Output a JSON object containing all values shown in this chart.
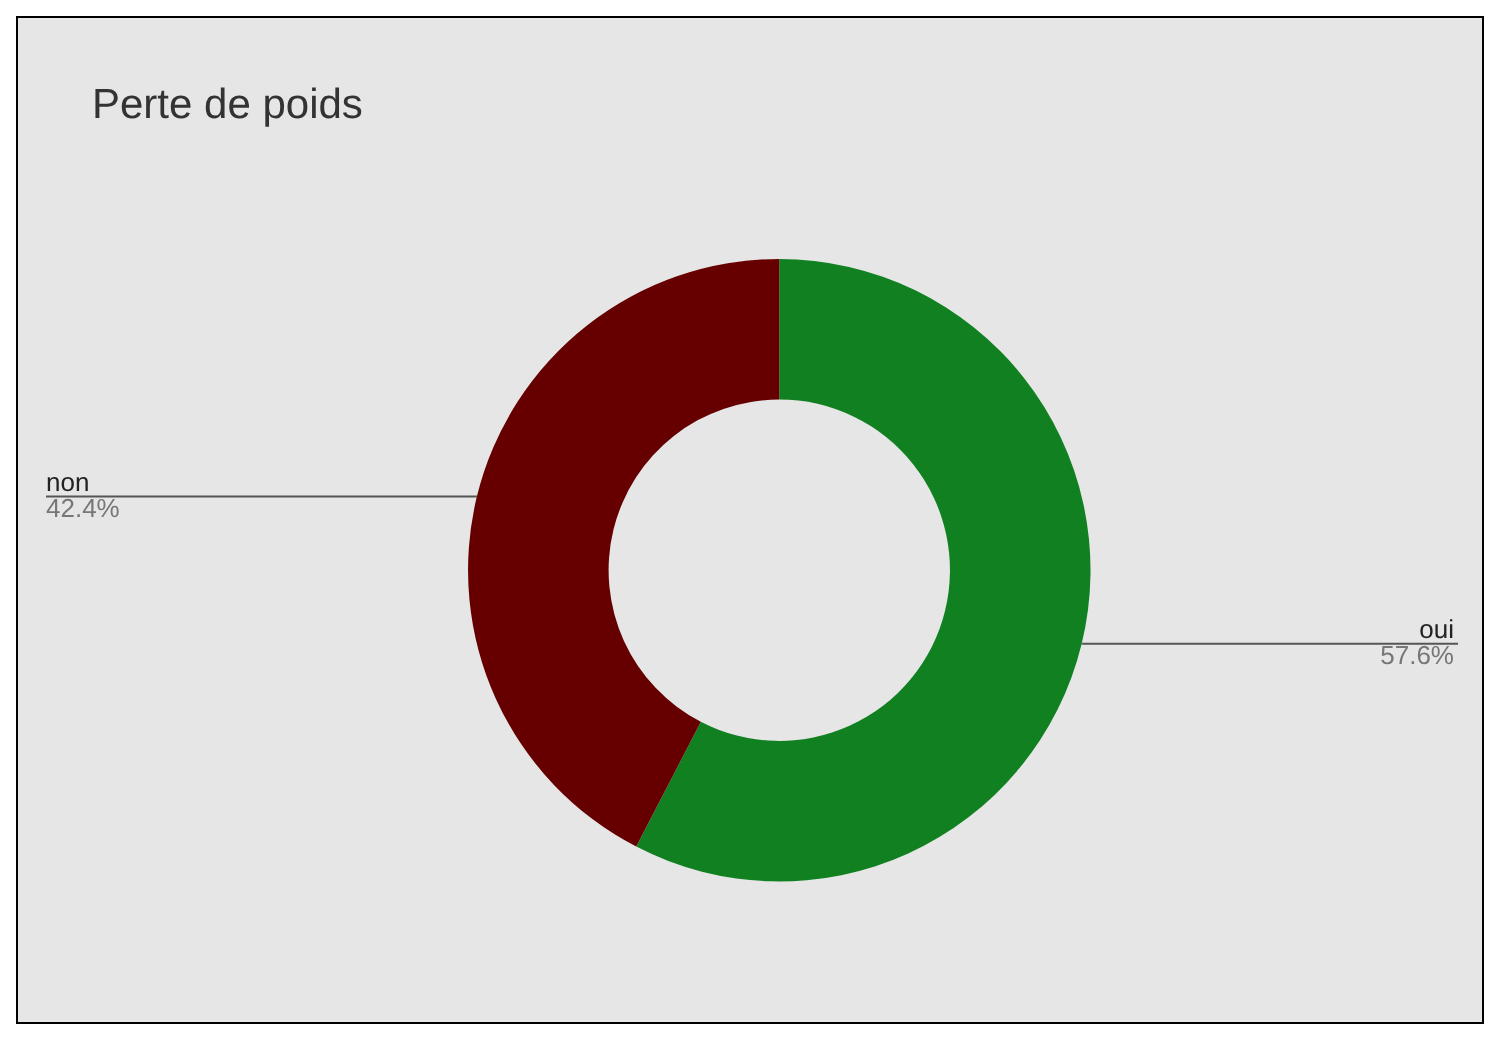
{
  "chart_data": {
    "type": "donut",
    "title": "Perte de poids",
    "categories": [
      "oui",
      "non"
    ],
    "values": [
      57.6,
      42.4
    ],
    "colors": [
      "#118021",
      "#660000"
    ],
    "value_labels": [
      "57.6%",
      "42.4%"
    ]
  }
}
